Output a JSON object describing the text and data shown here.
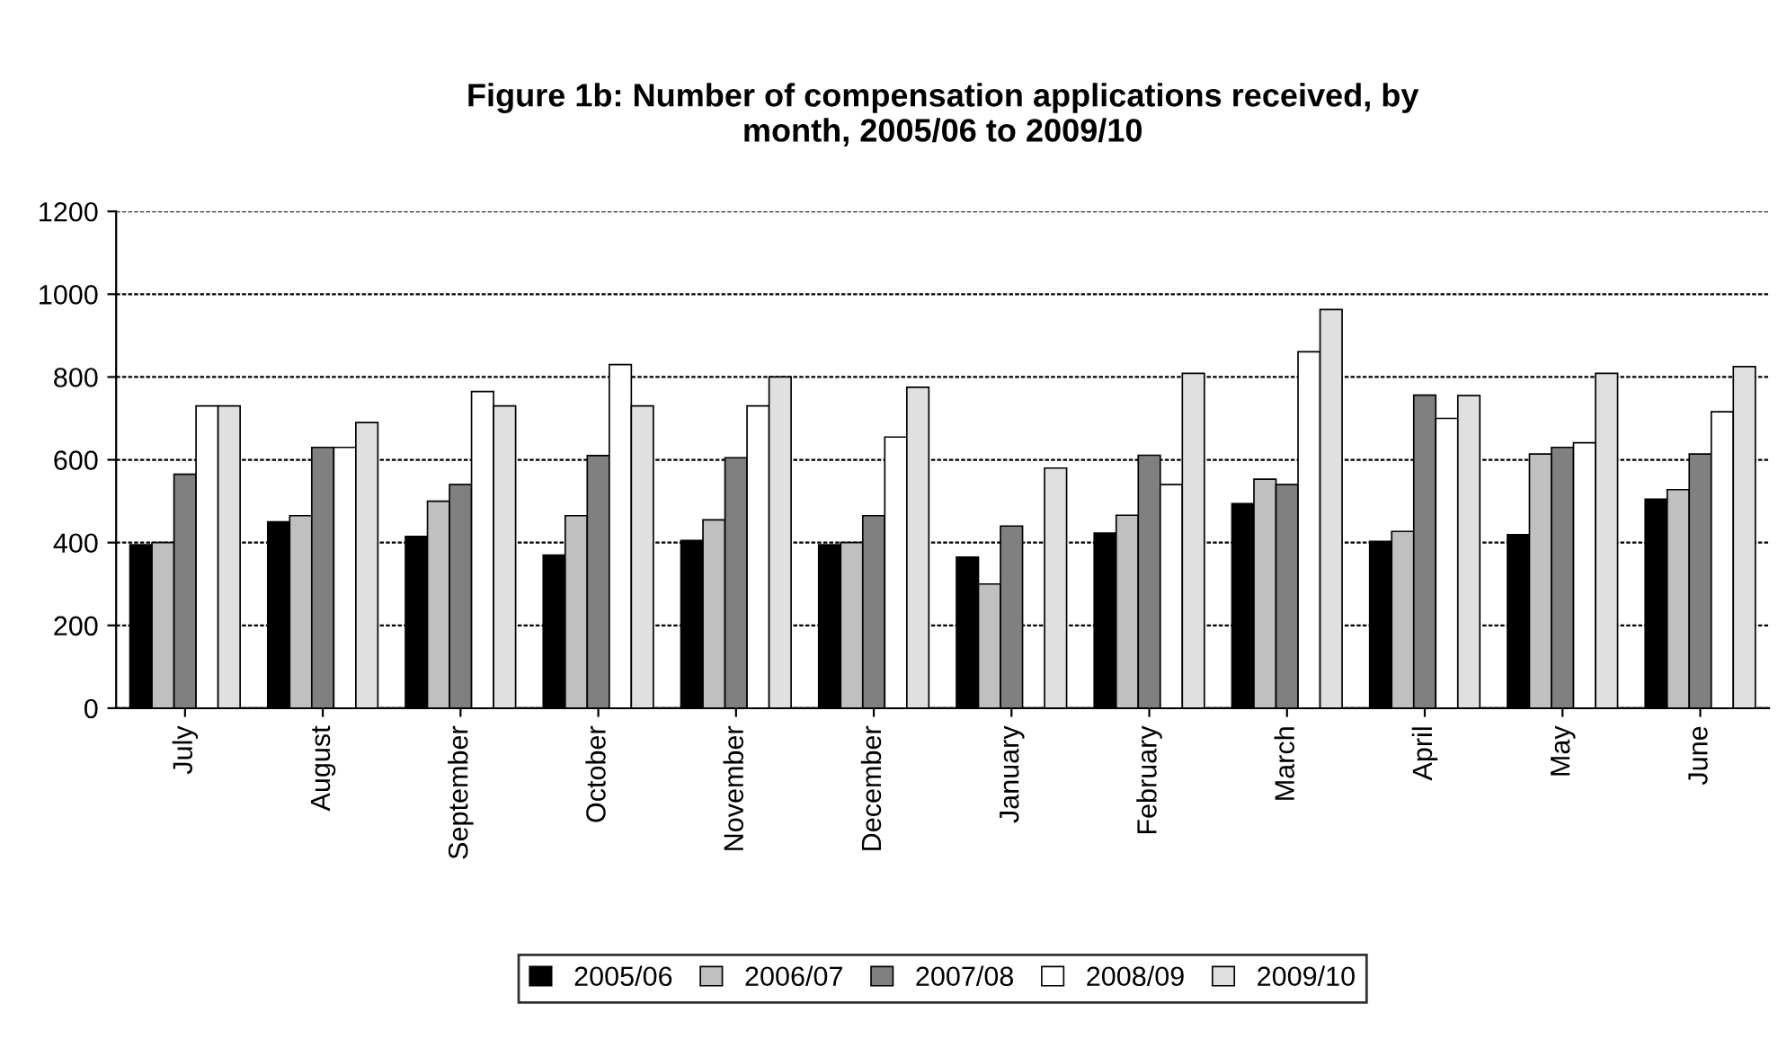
{
  "chart_data": {
    "type": "bar",
    "title": "Figure 1b: Number of compensation applications received, by\nmonth, 2005/06 to 2009/10",
    "categories": [
      "July",
      "August",
      "September",
      "October",
      "November",
      "December",
      "January",
      "February",
      "March",
      "April",
      "May",
      "June"
    ],
    "series": [
      {
        "name": "2005/06",
        "color": "#000000",
        "values": [
          395,
          450,
          415,
          370,
          405,
          395,
          365,
          423,
          494,
          403,
          419,
          505
        ]
      },
      {
        "name": "2006/07",
        "color": "#c0c0c0",
        "values": [
          400,
          465,
          500,
          465,
          455,
          400,
          300,
          466,
          553,
          427,
          614,
          528
        ]
      },
      {
        "name": "2007/08",
        "color": "#808080",
        "values": [
          565,
          630,
          540,
          610,
          605,
          465,
          440,
          611,
          540,
          756,
          630,
          614
        ]
      },
      {
        "name": "2008/09",
        "color": "#ffffff",
        "values": [
          730,
          630,
          765,
          830,
          730,
          655,
          null,
          540,
          861,
          700,
          641,
          716
        ]
      },
      {
        "name": "2009/10",
        "color": "#e0e0e0",
        "values": [
          730,
          690,
          730,
          730,
          800,
          775,
          580,
          809,
          963,
          755,
          809,
          825
        ]
      }
    ],
    "ylim": [
      0,
      1200
    ],
    "yticks": [
      0,
      200,
      400,
      600,
      800,
      1000,
      1200
    ],
    "grid": "y",
    "legend": "bottom"
  }
}
